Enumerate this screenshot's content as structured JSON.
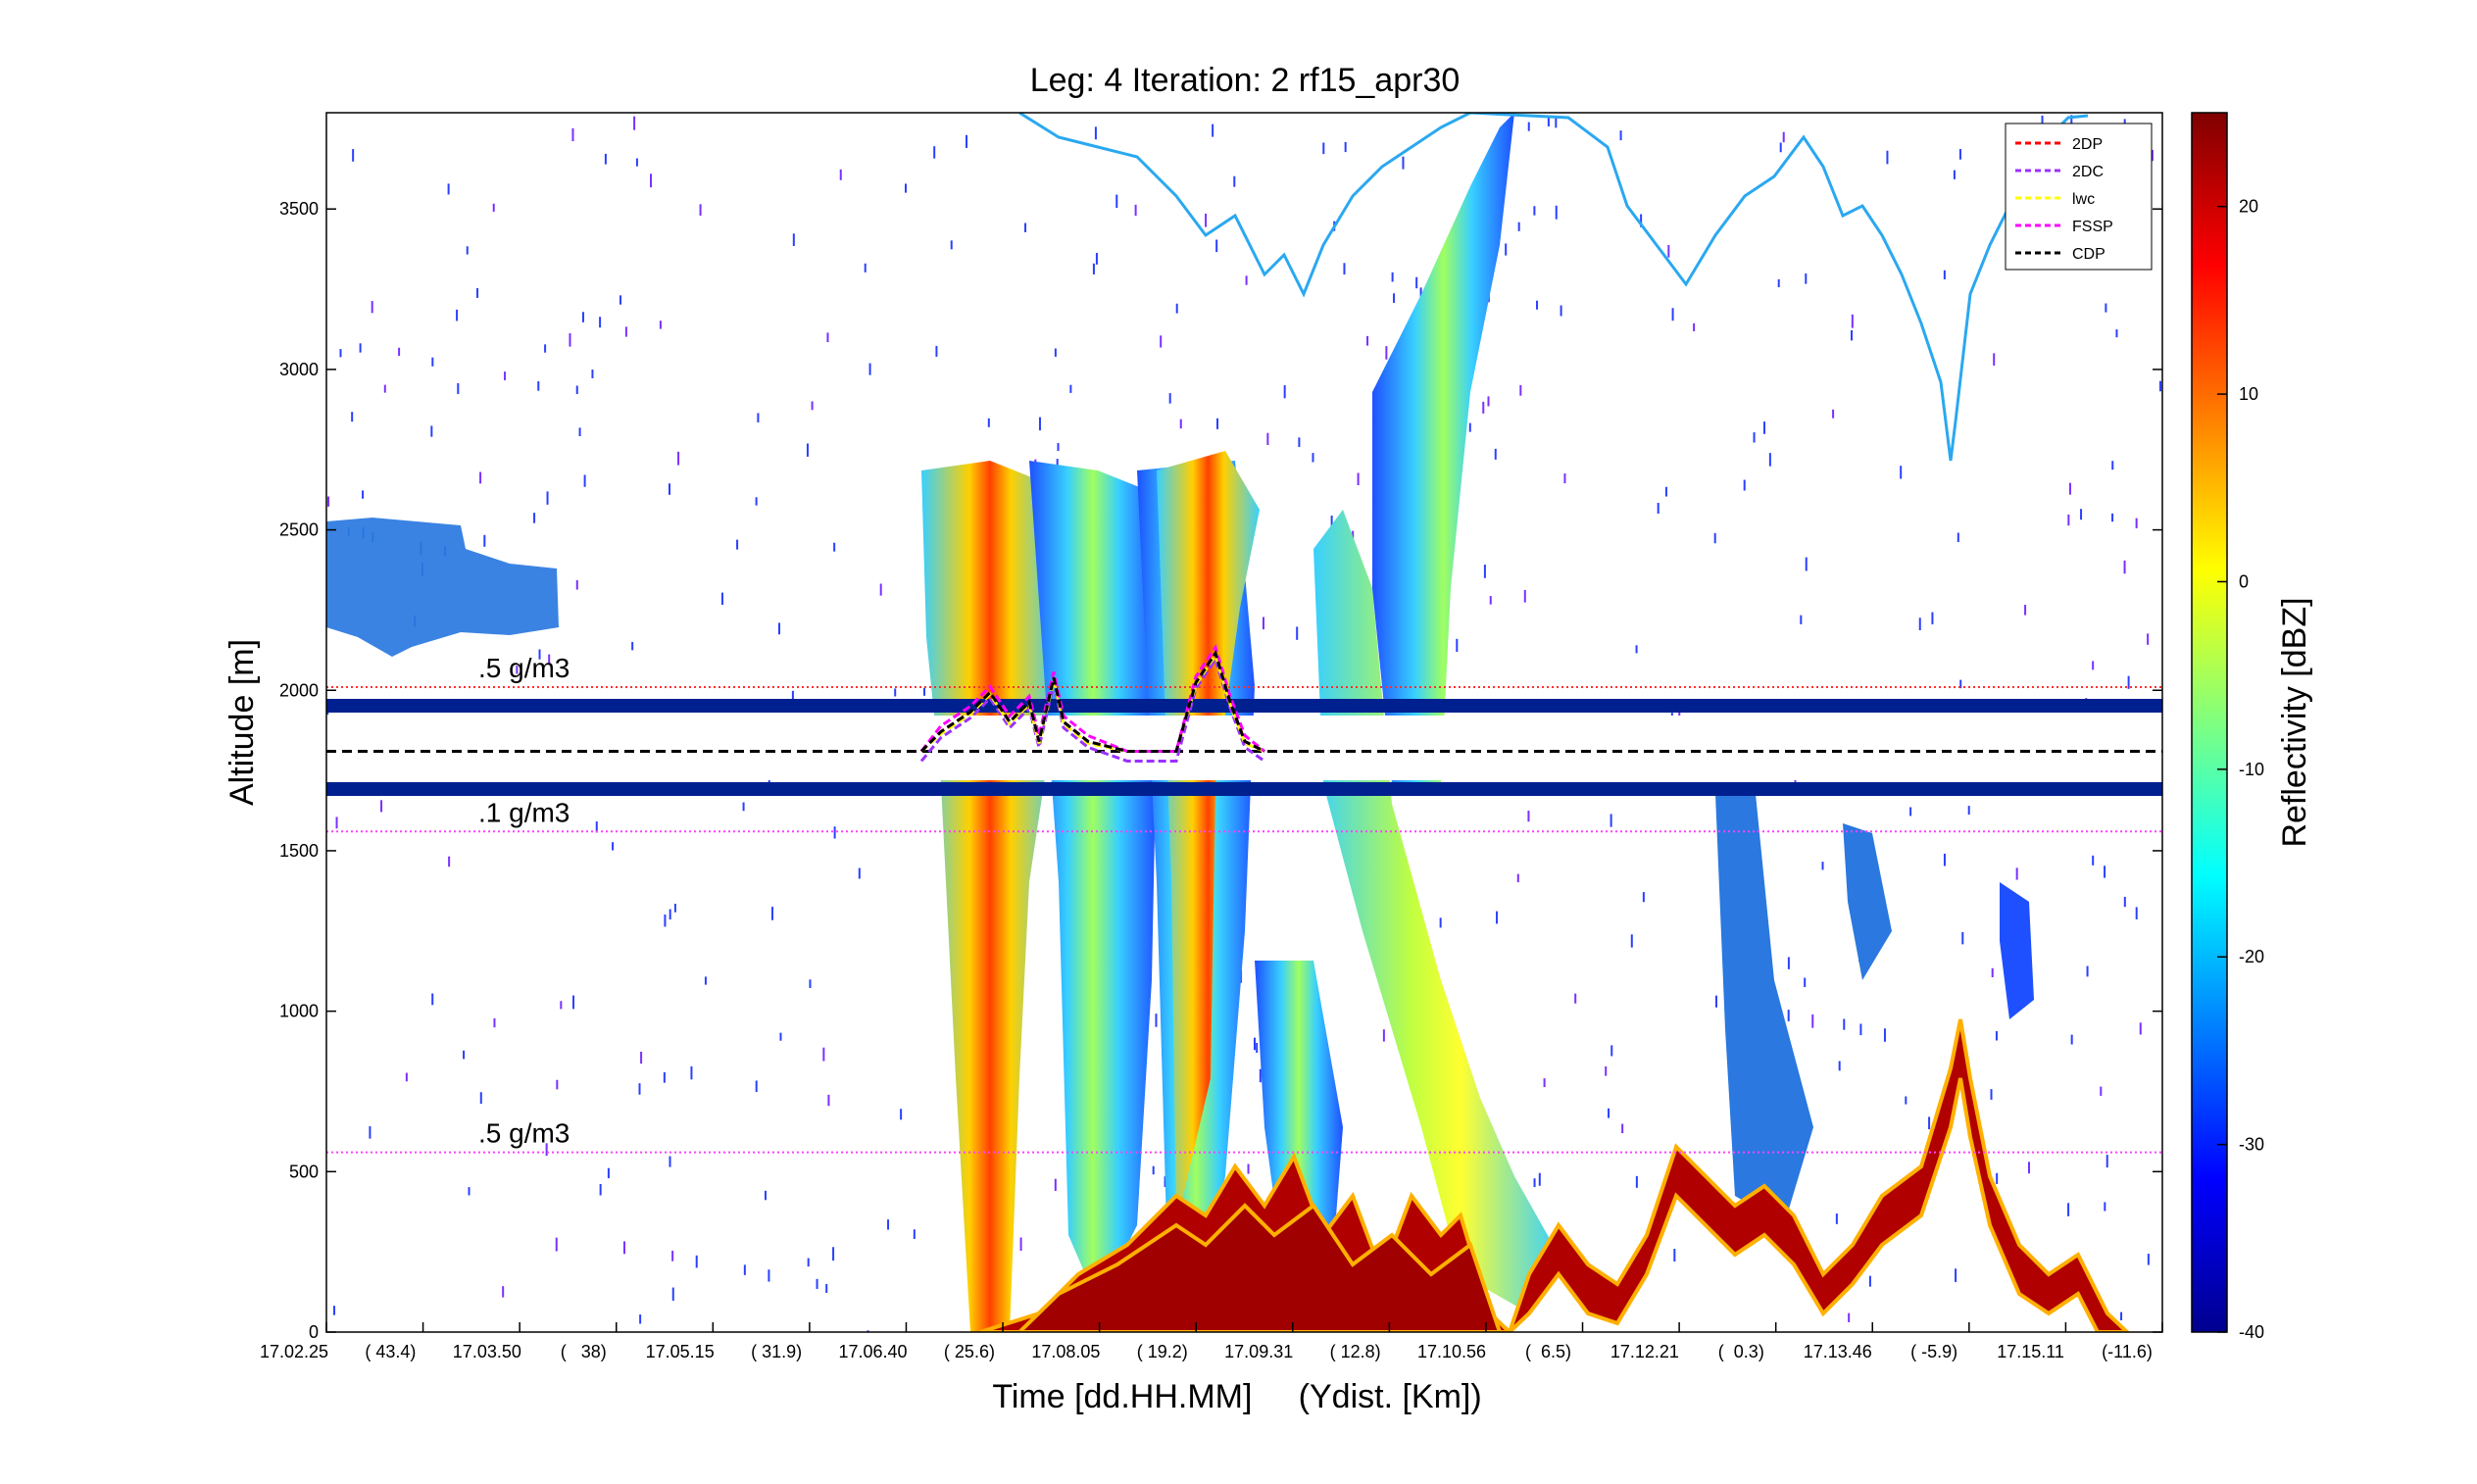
{
  "chart_data": {
    "type": "heatmap",
    "title": "Leg: 4  Iteration: 2  rf15_apr30",
    "xlabel": "Time [dd.HH.MM]     (Ydist. [Km])",
    "ylabel": "Altitude [m]",
    "ylim": [
      0,
      3800
    ],
    "yticks": [
      0,
      500,
      1000,
      1500,
      2000,
      2500,
      3000,
      3500
    ],
    "x_tick_labels": [
      "17.02.25",
      "( 43.4)",
      "17.03.50",
      "(   38)",
      "17.05.15",
      "( 31.9)",
      "17.06.40",
      "( 25.6)",
      "17.08.05",
      "( 19.2)",
      "17.09.31",
      "( 12.8)",
      "17.10.56",
      "(  6.5)",
      "17.12.21",
      "(  0.3)",
      "17.13.46",
      "( -5.9)",
      "17.15.11",
      "(-11.6)"
    ],
    "colorbar": {
      "label": "Reflectivity [dBZ]",
      "range": [
        -40,
        25
      ],
      "ticks": [
        -40,
        -30,
        -20,
        -10,
        0,
        10,
        20
      ],
      "colormap": "jet"
    },
    "reference_lines": [
      {
        "label": ".5 g/m3",
        "altitude": 2010,
        "color": "#ff3030"
      },
      {
        "label": ".1 g/m3",
        "altitude": 1560,
        "color": "#ff40ff"
      },
      {
        "label": ".5 g/m3",
        "altitude": 560,
        "color": "#ff40ff"
      }
    ],
    "flight_level": 1810,
    "series": [
      {
        "name": "2DP",
        "color": "#ff0000",
        "style": "dashed"
      },
      {
        "name": "2DC",
        "color": "#9b30ff",
        "style": "dashed"
      },
      {
        "name": "lwc",
        "color": "#ffff00",
        "style": "dashed"
      },
      {
        "name": "FSSP",
        "color": "#ff00ff",
        "style": "dashed"
      },
      {
        "name": "CDP",
        "color": "#000000",
        "style": "dashed"
      }
    ],
    "grid": false,
    "legend_position": "top-right"
  }
}
